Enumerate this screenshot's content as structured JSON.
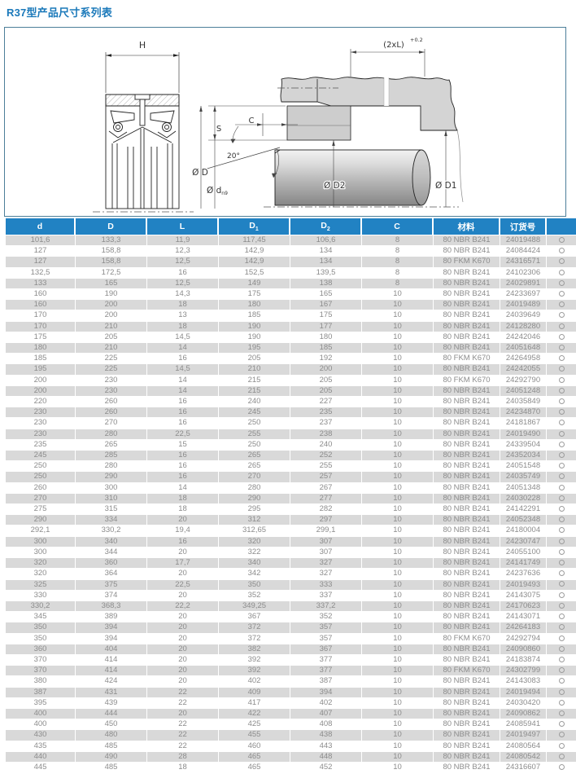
{
  "title": "R37型产品尺寸系列表",
  "colors": {
    "title_blue": "#1b79ba",
    "header_bg": "#2182c3",
    "row_alt_gray": "#d9d9d9",
    "drawing_border": "#4d7f9a",
    "housing_gray": "#d4d4d4"
  },
  "diagram": {
    "h": "H",
    "s": "S",
    "c": "C",
    "angle": "20°",
    "dia_d": "Ø D",
    "dia_dn9_main": "Ø d",
    "dia_dn9_sub": "n9",
    "two_xl": "(2xL)",
    "two_xl_tol": "+0.2",
    "dia_d2": "Ø D2",
    "dia_d1": "Ø D1"
  },
  "table": {
    "headers": [
      {
        "label": "d"
      },
      {
        "label": "D"
      },
      {
        "label": "L"
      },
      {
        "label": "D",
        "sub": "1"
      },
      {
        "label": "D",
        "sub": "2"
      },
      {
        "label": "C"
      },
      {
        "label": "材料"
      },
      {
        "label": "订货号"
      },
      {
        "label": ""
      }
    ],
    "rows": [
      [
        "101,6",
        "133,3",
        "11,9",
        "117,45",
        "106,6",
        "8",
        "80 NBR B241",
        "24019488"
      ],
      [
        "127",
        "158,8",
        "12,3",
        "142,9",
        "134",
        "8",
        "80 NBR B241",
        "24084424"
      ],
      [
        "127",
        "158,8",
        "12,5",
        "142,9",
        "134",
        "8",
        "80 FKM K670",
        "24316571"
      ],
      [
        "132,5",
        "172,5",
        "16",
        "152,5",
        "139,5",
        "8",
        "80 NBR B241",
        "24102306"
      ],
      [
        "133",
        "165",
        "12,5",
        "149",
        "138",
        "8",
        "80 NBR B241",
        "24029891"
      ],
      [
        "160",
        "190",
        "14,3",
        "175",
        "165",
        "10",
        "80 NBR B241",
        "24233697"
      ],
      [
        "160",
        "200",
        "18",
        "180",
        "167",
        "10",
        "80 NBR B241",
        "24019489"
      ],
      [
        "170",
        "200",
        "13",
        "185",
        "175",
        "10",
        "80 NBR B241",
        "24039649"
      ],
      [
        "170",
        "210",
        "18",
        "190",
        "177",
        "10",
        "80 NBR B241",
        "24128280"
      ],
      [
        "175",
        "205",
        "14,5",
        "190",
        "180",
        "10",
        "80 NBR B241",
        "24242046"
      ],
      [
        "180",
        "210",
        "14",
        "195",
        "185",
        "10",
        "80 NBR B241",
        "24051648"
      ],
      [
        "185",
        "225",
        "16",
        "205",
        "192",
        "10",
        "80 FKM K670",
        "24264958"
      ],
      [
        "195",
        "225",
        "14,5",
        "210",
        "200",
        "10",
        "80 NBR B241",
        "24242055"
      ],
      [
        "200",
        "230",
        "14",
        "215",
        "205",
        "10",
        "80 FKM K670",
        "24292790"
      ],
      [
        "200",
        "230",
        "14",
        "215",
        "205",
        "10",
        "80 NBR B241",
        "24051248"
      ],
      [
        "220",
        "260",
        "16",
        "240",
        "227",
        "10",
        "80 NBR B241",
        "24035849"
      ],
      [
        "230",
        "260",
        "16",
        "245",
        "235",
        "10",
        "80 NBR B241",
        "24234870"
      ],
      [
        "230",
        "270",
        "16",
        "250",
        "237",
        "10",
        "80 NBR B241",
        "24181867"
      ],
      [
        "230",
        "280",
        "22,5",
        "255",
        "238",
        "10",
        "80 NBR B241",
        "24019490"
      ],
      [
        "235",
        "265",
        "15",
        "250",
        "240",
        "10",
        "80 NBR B241",
        "24339504"
      ],
      [
        "245",
        "285",
        "16",
        "265",
        "252",
        "10",
        "80 NBR B241",
        "24352034"
      ],
      [
        "250",
        "280",
        "16",
        "265",
        "255",
        "10",
        "80 NBR B241",
        "24051548"
      ],
      [
        "250",
        "290",
        "16",
        "270",
        "257",
        "10",
        "80 NBR B241",
        "24035749"
      ],
      [
        "260",
        "300",
        "14",
        "280",
        "267",
        "10",
        "80 NBR B241",
        "24051348"
      ],
      [
        "270",
        "310",
        "18",
        "290",
        "277",
        "10",
        "80 NBR B241",
        "24030228"
      ],
      [
        "275",
        "315",
        "18",
        "295",
        "282",
        "10",
        "80 NBR B241",
        "24142291"
      ],
      [
        "290",
        "334",
        "20",
        "312",
        "297",
        "10",
        "80 NBR B241",
        "24052348"
      ],
      [
        "292,1",
        "330,2",
        "19,4",
        "312,65",
        "299,1",
        "10",
        "80 NBR B241",
        "24180004"
      ],
      [
        "300",
        "340",
        "16",
        "320",
        "307",
        "10",
        "80 NBR B241",
        "24230747"
      ],
      [
        "300",
        "344",
        "20",
        "322",
        "307",
        "10",
        "80 NBR B241",
        "24055100"
      ],
      [
        "320",
        "360",
        "17,7",
        "340",
        "327",
        "10",
        "80 NBR B241",
        "24141749"
      ],
      [
        "320",
        "364",
        "20",
        "342",
        "327",
        "10",
        "80 NBR B241",
        "24237636"
      ],
      [
        "325",
        "375",
        "22,5",
        "350",
        "333",
        "10",
        "80 NBR B241",
        "24019493"
      ],
      [
        "330",
        "374",
        "20",
        "352",
        "337",
        "10",
        "80 NBR B241",
        "24143075"
      ],
      [
        "330,2",
        "368,3",
        "22,2",
        "349,25",
        "337,2",
        "10",
        "80 NBR B241",
        "24170623"
      ],
      [
        "345",
        "389",
        "20",
        "367",
        "352",
        "10",
        "80 NBR B241",
        "24143071"
      ],
      [
        "350",
        "394",
        "20",
        "372",
        "357",
        "10",
        "80 NBR B241",
        "24264183"
      ],
      [
        "350",
        "394",
        "20",
        "372",
        "357",
        "10",
        "80 FKM K670",
        "24292794"
      ],
      [
        "360",
        "404",
        "20",
        "382",
        "367",
        "10",
        "80 NBR B241",
        "24090860"
      ],
      [
        "370",
        "414",
        "20",
        "392",
        "377",
        "10",
        "80 NBR B241",
        "24183874"
      ],
      [
        "370",
        "414",
        "20",
        "392",
        "377",
        "10",
        "80 FKM K670",
        "24302799"
      ],
      [
        "380",
        "424",
        "20",
        "402",
        "387",
        "10",
        "80 NBR B241",
        "24143083"
      ],
      [
        "387",
        "431",
        "22",
        "409",
        "394",
        "10",
        "80 NBR B241",
        "24019494"
      ],
      [
        "395",
        "439",
        "22",
        "417",
        "402",
        "10",
        "80 NBR B241",
        "24030420"
      ],
      [
        "400",
        "444",
        "20",
        "422",
        "407",
        "10",
        "80 NBR B241",
        "24090862"
      ],
      [
        "400",
        "450",
        "22",
        "425",
        "408",
        "10",
        "80 NBR B241",
        "24085941"
      ],
      [
        "430",
        "480",
        "22",
        "455",
        "438",
        "10",
        "80 NBR B241",
        "24019497"
      ],
      [
        "435",
        "485",
        "22",
        "460",
        "443",
        "10",
        "80 NBR B241",
        "24080564"
      ],
      [
        "440",
        "490",
        "28",
        "465",
        "448",
        "10",
        "80 NBR B241",
        "24080542"
      ],
      [
        "445",
        "485",
        "18",
        "465",
        "452",
        "10",
        "80 NBR B241",
        "24316607"
      ]
    ]
  }
}
